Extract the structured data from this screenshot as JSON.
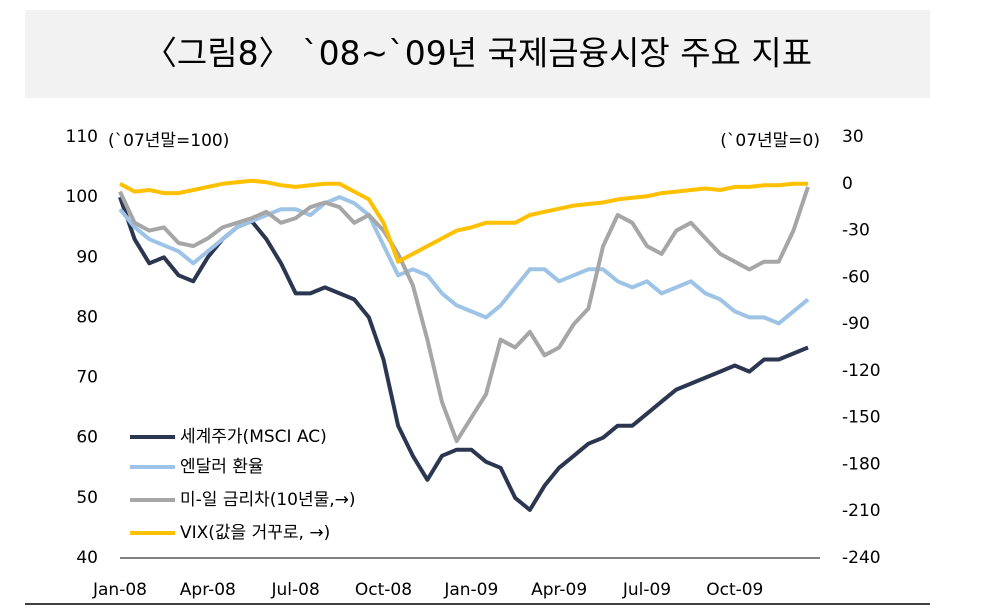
{
  "chart_data": {
    "type": "line",
    "title": "〈그림8〉 `08~`09년 국제금융시장 주요 지표",
    "ylabel": "(`07년말=100)",
    "y2label": "(`07년말=0)",
    "categories": [
      "Jan-08",
      null,
      null,
      null,
      null,
      null,
      "Apr-08",
      null,
      null,
      null,
      null,
      null,
      "Jul-08",
      null,
      null,
      null,
      null,
      null,
      "Oct-08",
      null,
      null,
      null,
      null,
      null,
      "Jan-09",
      null,
      null,
      null,
      null,
      null,
      "Apr-09",
      null,
      null,
      null,
      null,
      null,
      "Jul-09",
      null,
      null,
      null,
      null,
      null,
      "Oct-09",
      null,
      null,
      null,
      null,
      null
    ],
    "ylim": [
      40,
      110
    ],
    "yticks": [
      40,
      50,
      60,
      70,
      80,
      90,
      100,
      110
    ],
    "y2lim": [
      -240,
      30
    ],
    "y2ticks": [
      -240,
      -210,
      -180,
      -150,
      -120,
      -90,
      -60,
      -30,
      0,
      30
    ],
    "series": [
      {
        "name": "세계주가(MSCI AC)",
        "color": "#2b3650",
        "values": [
          100,
          93,
          89,
          90,
          87,
          86,
          90,
          93,
          95,
          96,
          93,
          89,
          84,
          84,
          85,
          84,
          83,
          80,
          73,
          62,
          57,
          53,
          57,
          58,
          58,
          56,
          55,
          50,
          48,
          52,
          55,
          57,
          59,
          60,
          62,
          62,
          64,
          66,
          68,
          69,
          70,
          71,
          72,
          71,
          73,
          73,
          74,
          75
        ]
      },
      {
        "name": "엔달러 환율",
        "color": "#9dc3e6",
        "values": [
          98,
          95,
          93,
          92,
          91,
          89,
          91,
          93,
          95,
          96,
          97,
          98,
          98,
          97,
          99,
          100,
          99,
          97,
          92,
          87,
          88,
          87,
          84,
          82,
          81,
          80,
          82,
          85,
          88,
          88,
          86,
          87,
          88,
          88,
          86,
          85,
          86,
          84,
          85,
          86,
          84,
          83,
          81,
          80,
          80,
          79,
          81,
          83
        ]
      },
      {
        "name": "미-일 금리차(10년물,→)",
        "color": "#a6a6a6",
        "axis": "y2",
        "values": [
          -5,
          -25,
          -30,
          -28,
          -38,
          -40,
          -35,
          -28,
          -25,
          -22,
          -18,
          -25,
          -22,
          -15,
          -12,
          -15,
          -25,
          -20,
          -30,
          -45,
          -65,
          -100,
          -140,
          -165,
          -150,
          -135,
          -100,
          -105,
          -95,
          -110,
          -105,
          -90,
          -80,
          -40,
          -20,
          -25,
          -40,
          -45,
          -30,
          -25,
          -35,
          -45,
          -50,
          -55,
          -50,
          -50,
          -30,
          -2
        ]
      },
      {
        "name": "VIX(값을 거꾸로, →)",
        "color": "#ffc000",
        "axis": "y2",
        "values": [
          0,
          -5,
          -4,
          -6,
          -6,
          -4,
          -2,
          0,
          1,
          2,
          1,
          -1,
          -2,
          -1,
          0,
          0,
          -5,
          -10,
          -25,
          -50,
          -45,
          -40,
          -35,
          -30,
          -28,
          -25,
          -25,
          -25,
          -20,
          -18,
          -16,
          -14,
          -13,
          -12,
          -10,
          -9,
          -8,
          -6,
          -5,
          -4,
          -3,
          -4,
          -2,
          -2,
          -1,
          -1,
          0,
          0
        ]
      }
    ]
  }
}
